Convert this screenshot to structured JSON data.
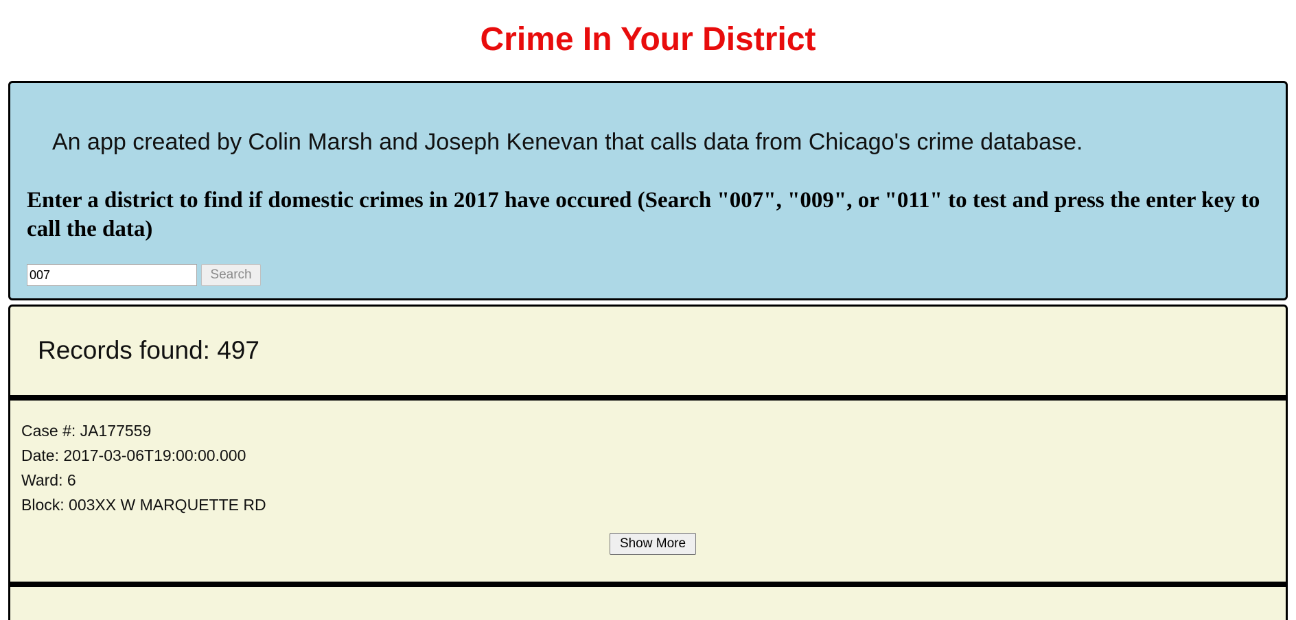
{
  "header": {
    "title": "Crime In Your District"
  },
  "intro": {
    "description": "An app created by Colin Marsh and Joseph Kenevan that calls data from Chicago's crime database.",
    "instruction": "Enter a district to find if domestic crimes in 2017 have occured (Search \"007\", \"009\", or \"011\" to test and press the enter key to call the data)"
  },
  "search": {
    "value": "007",
    "button_label": "Search"
  },
  "results": {
    "records_found": "Records found: 497",
    "records": [
      {
        "case": "Case #: JA177559",
        "date": "Date: 2017-03-06T19:00:00.000",
        "ward": "Ward: 6",
        "block": "Block: 003XX W MARQUETTE RD",
        "show_more_label": "Show More"
      }
    ]
  },
  "colors": {
    "title": "#e80c0c",
    "intro_panel_bg": "#add8e6",
    "results_panel_bg": "#f5f5dc"
  }
}
